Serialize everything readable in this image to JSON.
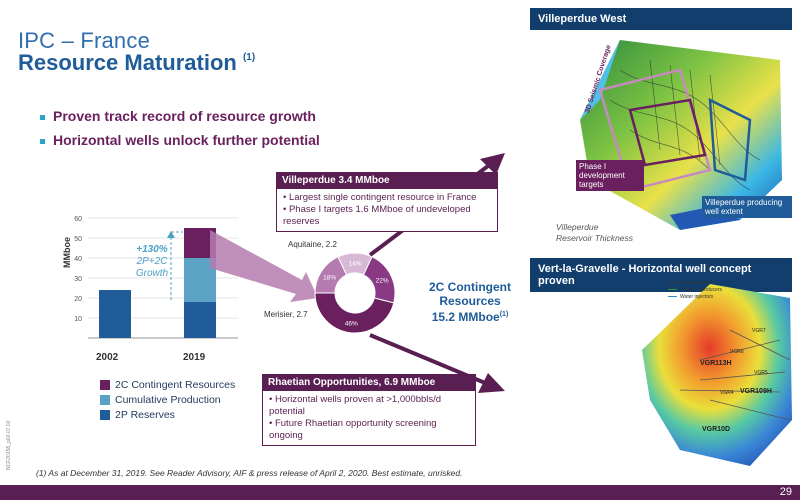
{
  "title": {
    "line1": "IPC – France",
    "line2": "Resource Maturation",
    "footnote_mark": "(1)"
  },
  "bullets": [
    "Proven track record of resource growth",
    "Horizontal wells unlock further potential"
  ],
  "chart_data": [
    {
      "type": "bar",
      "stacked": true,
      "categories": [
        "2002",
        "2019"
      ],
      "ylabel": "MMboe",
      "ylim": [
        0,
        60
      ],
      "yticks": [
        "60",
        "50",
        "40",
        "30",
        "20",
        "10"
      ],
      "series": [
        {
          "name": "2P Reserves",
          "values": [
            24,
            18
          ],
          "color": "#1f5c99"
        },
        {
          "name": "Cumulative Production",
          "values": [
            0,
            22
          ],
          "color": "#5ba3c4"
        },
        {
          "name": "2C Contingent Resources",
          "values": [
            0,
            15
          ],
          "color": "#6a1f5e"
        }
      ],
      "annotation": "+130%\n2P+2C\nGrowth"
    },
    {
      "type": "pie",
      "donut": true,
      "slices": [
        {
          "label": "Aquitaine, 2.2",
          "pct": "14%",
          "value": 14,
          "color": "#d7b9d6"
        },
        {
          "label": "",
          "pct": "22%",
          "value": 22,
          "color": "#8a3a84"
        },
        {
          "label": "",
          "pct": "46%",
          "value": 46,
          "color": "#6a1f5e"
        },
        {
          "label": "Merisier, 2.7",
          "pct": "18%",
          "value": 18,
          "color": "#b57bb0"
        }
      ]
    }
  ],
  "growth": {
    "line1": "+130%",
    "line2": "2P+2C",
    "line3": "Growth"
  },
  "legend": [
    "2C Contingent Resources",
    "Cumulative Production",
    "2P Reserves"
  ],
  "colors": {
    "purple": "#5a1f52",
    "navy": "#123e6e",
    "lightblue": "#5ba3c4",
    "blue": "#1f5c99"
  },
  "contingent": {
    "line1": "2C Contingent Resources",
    "line2": "15.2 MMboe",
    "mark": "(1)"
  },
  "villeperdue_box": {
    "header": "Villeperdue  3.4 MMboe",
    "items": [
      "Largest single contingent resource in France",
      "Phase I targets 1.6 MMboe of undeveloped reserves"
    ]
  },
  "rhaetian_box": {
    "header": "Rhaetian Opportunities, 6.9 MMboe",
    "items": [
      "Horizontal wells proven at >1,000bbls/d potential",
      "Future Rhaetian opportunity screening ongoing"
    ]
  },
  "map1": {
    "header": "Villeperdue West",
    "phase_label": "Phase I development targets",
    "extent_label": "Villeperdue producing well extent",
    "seismic": "3D Seismic Coverage",
    "caption_line1": "Villeperdue",
    "caption_line2": "Reservoir Thickness"
  },
  "map2": {
    "header": "Vert-la-Gravelle - Horizontal well concept proven",
    "legend": [
      "Existing wells",
      "Phase 1 producers",
      "Water injectors"
    ],
    "wells": [
      "VGR113H",
      "VGR109H",
      "VGR10D",
      "VGR7",
      "VGR6",
      "VGR4",
      "VGR5"
    ]
  },
  "footnote": "(1) As at December 31, 2019. See Reader Advisory, AIF & press release of April 2, 2020. Best estimate, unrisked.",
  "page_number": "29",
  "doc_code": "NCF20158_p02-07.02"
}
